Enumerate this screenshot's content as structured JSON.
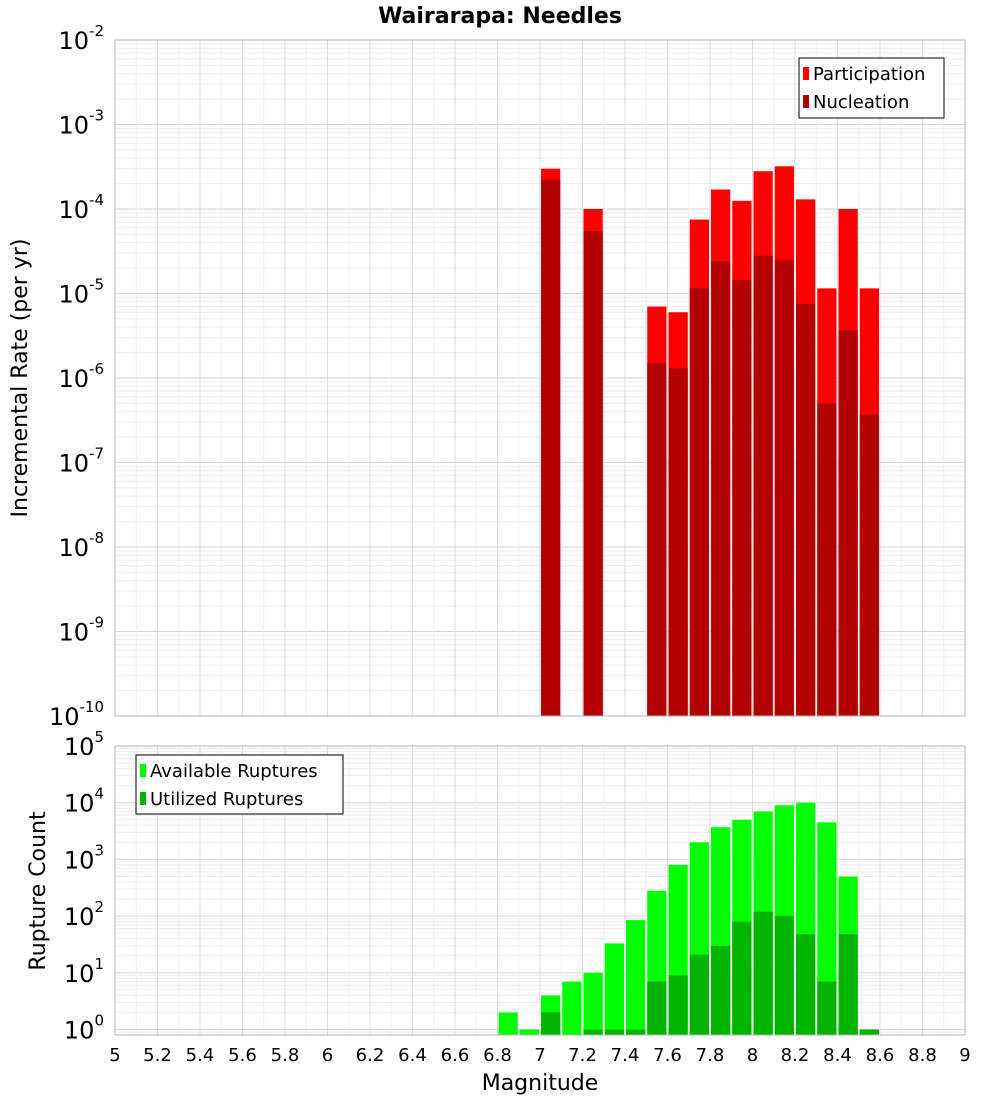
{
  "chart_data": [
    {
      "type": "bar",
      "title": "Wairarapa: Needles",
      "xlabel": "",
      "ylabel": "Incremental Rate (per yr)",
      "yscale": "log",
      "ylim": [
        1e-10,
        0.01
      ],
      "xlim": [
        5,
        9
      ],
      "bar_width": 0.1,
      "grid": true,
      "legend_position": "top-right",
      "x": [
        7.05,
        7.25,
        7.55,
        7.65,
        7.75,
        7.85,
        7.95,
        8.05,
        8.15,
        8.25,
        8.35,
        8.45,
        8.55
      ],
      "series": [
        {
          "name": "Participation",
          "color": "#ff0000",
          "values": [
            0.0003,
            0.0001,
            7e-06,
            6e-06,
            7.5e-05,
            0.00017,
            0.000125,
            0.00028,
            0.00032,
            0.00013,
            1.15e-05,
            0.0001,
            1.15e-05
          ]
        },
        {
          "name": "Nucleation",
          "color": "#b30000",
          "values": [
            0.00022,
            5.5e-05,
            1.5e-06,
            1.3e-06,
            1.15e-05,
            2.4e-05,
            1.45e-05,
            2.8e-05,
            2.5e-05,
            7.5e-06,
            5e-07,
            3.7e-06,
            3.7e-07
          ]
        }
      ],
      "y_ticks": [
        {
          "base": "10",
          "exp": "-10",
          "value": 1e-10
        },
        {
          "base": "10",
          "exp": "-9",
          "value": 1e-09
        },
        {
          "base": "10",
          "exp": "-8",
          "value": 1e-08
        },
        {
          "base": "10",
          "exp": "-7",
          "value": 1e-07
        },
        {
          "base": "10",
          "exp": "-6",
          "value": 1e-06
        },
        {
          "base": "10",
          "exp": "-5",
          "value": 1e-05
        },
        {
          "base": "10",
          "exp": "-4",
          "value": 0.0001
        },
        {
          "base": "10",
          "exp": "-3",
          "value": 0.001
        },
        {
          "base": "10",
          "exp": "-2",
          "value": 0.01
        }
      ]
    },
    {
      "type": "bar",
      "title": "",
      "xlabel": "Magnitude",
      "ylabel": "Rupture Count",
      "yscale": "log",
      "ylim": [
        0.8,
        100000
      ],
      "xlim": [
        5,
        9
      ],
      "bar_width": 0.1,
      "grid": true,
      "legend_position": "top-left",
      "x": [
        6.85,
        6.95,
        7.05,
        7.15,
        7.25,
        7.35,
        7.45,
        7.55,
        7.65,
        7.75,
        7.85,
        7.95,
        8.05,
        8.15,
        8.25,
        8.35,
        8.45,
        8.55
      ],
      "series": [
        {
          "name": "Available Ruptures",
          "color": "#00ff00",
          "values": [
            2,
            1,
            4,
            7,
            10,
            33,
            85,
            280,
            800,
            2000,
            3700,
            5000,
            7000,
            9000,
            10000,
            4500,
            500,
            1
          ]
        },
        {
          "name": "Utilized Ruptures",
          "color": "#00b300",
          "values": [
            0,
            0,
            2,
            0,
            1,
            1,
            1,
            7,
            9,
            21,
            30,
            80,
            120,
            100,
            48,
            7,
            48,
            1
          ]
        }
      ],
      "y_ticks": [
        {
          "base": "10",
          "exp": "0",
          "value": 1
        },
        {
          "base": "10",
          "exp": "1",
          "value": 10
        },
        {
          "base": "10",
          "exp": "2",
          "value": 100
        },
        {
          "base": "10",
          "exp": "3",
          "value": 1000
        },
        {
          "base": "10",
          "exp": "4",
          "value": 10000
        },
        {
          "base": "10",
          "exp": "5",
          "value": 100000
        }
      ],
      "x_ticks": [
        "5",
        "5.2",
        "5.4",
        "5.6",
        "5.8",
        "6",
        "6.2",
        "6.4",
        "6.6",
        "6.8",
        "7",
        "7.2",
        "7.4",
        "7.6",
        "7.8",
        "8",
        "8.2",
        "8.4",
        "8.6",
        "8.8",
        "9"
      ]
    }
  ]
}
